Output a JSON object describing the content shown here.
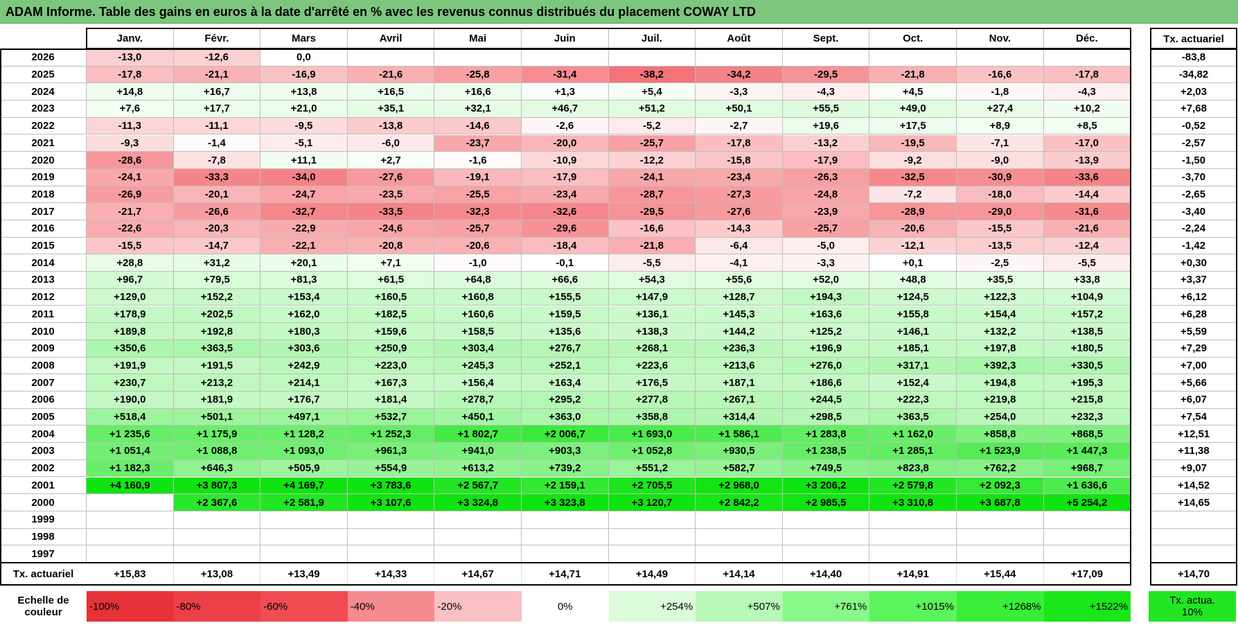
{
  "title": "ADAM Informe. Table des gains en euros à la date d'arrêté en % avec les revenus connus distribués du placement COWAY LTD",
  "table": {
    "columns": [
      "Janv.",
      "Févr.",
      "Mars",
      "Avril",
      "Mai",
      "Juin",
      "Juil.",
      "Août",
      "Sept.",
      "Oct.",
      "Nov.",
      "Déc."
    ],
    "total_header": "Tx. actuariel",
    "rows": [
      {
        "year": "2026",
        "cells": [
          "-13,0",
          "-12,6",
          "0,0",
          null,
          null,
          null,
          null,
          null,
          null,
          null,
          null,
          null
        ],
        "total": "-83,8"
      },
      {
        "year": "2025",
        "cells": [
          "-17,8",
          "-21,1",
          "-16,9",
          "-21,6",
          "-25,8",
          "-31,4",
          "-38,2",
          "-34,2",
          "-29,5",
          "-21,8",
          "-16,6",
          "-17,8"
        ],
        "total": "-34,82"
      },
      {
        "year": "2024",
        "cells": [
          "+14,8",
          "+16,7",
          "+13,8",
          "+16,5",
          "+16,6",
          "+1,3",
          "+5,4",
          "-3,3",
          "-4,3",
          "+4,5",
          "-1,8",
          "-4,3"
        ],
        "total": "+2,03"
      },
      {
        "year": "2023",
        "cells": [
          "+7,6",
          "+17,7",
          "+21,0",
          "+35,1",
          "+32,1",
          "+46,7",
          "+51,2",
          "+50,1",
          "+55,5",
          "+49,0",
          "+27,4",
          "+10,2"
        ],
        "total": "+7,68"
      },
      {
        "year": "2022",
        "cells": [
          "-11,3",
          "-11,1",
          "-9,5",
          "-13,8",
          "-14,6",
          "-2,6",
          "-5,2",
          "-2,7",
          "+19,6",
          "+17,5",
          "+8,9",
          "+8,5"
        ],
        "total": "-0,52"
      },
      {
        "year": "2021",
        "cells": [
          "-9,3",
          "-1,4",
          "-5,1",
          "-6,0",
          "-23,7",
          "-20,0",
          "-25,7",
          "-17,8",
          "-13,2",
          "-19,5",
          "-7,1",
          "-17,0"
        ],
        "total": "-2,57"
      },
      {
        "year": "2020",
        "cells": [
          "-28,6",
          "-7,8",
          "+11,1",
          "+2,7",
          "-1,6",
          "-10,9",
          "-12,2",
          "-15,8",
          "-17,9",
          "-9,2",
          "-9,0",
          "-13,9"
        ],
        "total": "-1,50"
      },
      {
        "year": "2019",
        "cells": [
          "-24,1",
          "-33,3",
          "-34,0",
          "-27,6",
          "-19,1",
          "-17,9",
          "-24,1",
          "-23,4",
          "-26,3",
          "-32,5",
          "-30,9",
          "-33,6"
        ],
        "total": "-3,70"
      },
      {
        "year": "2018",
        "cells": [
          "-26,9",
          "-20,1",
          "-24,7",
          "-23,5",
          "-25,5",
          "-23,4",
          "-28,7",
          "-27,3",
          "-24,8",
          "-7,2",
          "-18,0",
          "-14,4"
        ],
        "total": "-2,65"
      },
      {
        "year": "2017",
        "cells": [
          "-21,7",
          "-26,6",
          "-32,7",
          "-33,5",
          "-32,3",
          "-32,6",
          "-29,5",
          "-27,6",
          "-23,9",
          "-28,9",
          "-29,0",
          "-31,6"
        ],
        "total": "-3,40"
      },
      {
        "year": "2016",
        "cells": [
          "-22,6",
          "-20,3",
          "-22,9",
          "-24,6",
          "-25,7",
          "-29,6",
          "-16,6",
          "-14,3",
          "-25,7",
          "-20,6",
          "-15,5",
          "-21,6"
        ],
        "total": "-2,24"
      },
      {
        "year": "2015",
        "cells": [
          "-15,5",
          "-14,7",
          "-22,1",
          "-20,8",
          "-20,6",
          "-18,4",
          "-21,8",
          "-6,4",
          "-5,0",
          "-12,1",
          "-13,5",
          "-12,4"
        ],
        "total": "-1,42"
      },
      {
        "year": "2014",
        "cells": [
          "+28,8",
          "+31,2",
          "+20,1",
          "+7,1",
          "-1,0",
          "-0,1",
          "-5,5",
          "-4,1",
          "-3,3",
          "+0,1",
          "-2,5",
          "-5,5"
        ],
        "total": "+0,30"
      },
      {
        "year": "2013",
        "cells": [
          "+96,7",
          "+79,5",
          "+81,3",
          "+61,5",
          "+64,8",
          "+66,6",
          "+54,3",
          "+55,6",
          "+52,0",
          "+48,8",
          "+35,5",
          "+33,8"
        ],
        "total": "+3,37"
      },
      {
        "year": "2012",
        "cells": [
          "+129,0",
          "+152,2",
          "+153,4",
          "+160,5",
          "+160,8",
          "+155,5",
          "+147,9",
          "+128,7",
          "+194,3",
          "+124,5",
          "+122,3",
          "+104,9"
        ],
        "total": "+6,12"
      },
      {
        "year": "2011",
        "cells": [
          "+178,9",
          "+202,5",
          "+162,0",
          "+182,5",
          "+160,6",
          "+159,5",
          "+136,1",
          "+145,3",
          "+163,6",
          "+155,8",
          "+154,4",
          "+157,2"
        ],
        "total": "+6,28"
      },
      {
        "year": "2010",
        "cells": [
          "+189,8",
          "+192,8",
          "+180,3",
          "+159,6",
          "+158,5",
          "+135,6",
          "+138,3",
          "+144,2",
          "+125,2",
          "+146,1",
          "+132,2",
          "+138,5"
        ],
        "total": "+5,59"
      },
      {
        "year": "2009",
        "cells": [
          "+350,6",
          "+363,5",
          "+303,6",
          "+250,9",
          "+303,4",
          "+276,7",
          "+268,1",
          "+236,3",
          "+196,9",
          "+185,1",
          "+197,8",
          "+180,5"
        ],
        "total": "+7,29"
      },
      {
        "year": "2008",
        "cells": [
          "+191,9",
          "+191,5",
          "+242,9",
          "+223,0",
          "+245,3",
          "+252,1",
          "+223,6",
          "+213,6",
          "+276,0",
          "+317,1",
          "+392,3",
          "+330,5"
        ],
        "total": "+7,00"
      },
      {
        "year": "2007",
        "cells": [
          "+230,7",
          "+213,2",
          "+214,1",
          "+167,3",
          "+156,4",
          "+163,4",
          "+176,5",
          "+187,1",
          "+186,6",
          "+152,4",
          "+194,8",
          "+195,3"
        ],
        "total": "+5,66"
      },
      {
        "year": "2006",
        "cells": [
          "+190,0",
          "+181,9",
          "+176,7",
          "+181,4",
          "+278,7",
          "+295,2",
          "+277,8",
          "+267,1",
          "+244,5",
          "+222,3",
          "+219,8",
          "+215,8"
        ],
        "total": "+6,07"
      },
      {
        "year": "2005",
        "cells": [
          "+518,4",
          "+501,1",
          "+497,1",
          "+532,7",
          "+450,1",
          "+363,0",
          "+358,8",
          "+314,4",
          "+298,5",
          "+363,5",
          "+254,0",
          "+232,3"
        ],
        "total": "+7,54"
      },
      {
        "year": "2004",
        "cells": [
          "+1 235,6",
          "+1 175,9",
          "+1 128,2",
          "+1 252,3",
          "+1 802,7",
          "+2 006,7",
          "+1 693,0",
          "+1 586,1",
          "+1 283,8",
          "+1 162,0",
          "+858,8",
          "+868,5"
        ],
        "total": "+12,51"
      },
      {
        "year": "2003",
        "cells": [
          "+1 051,4",
          "+1 088,8",
          "+1 093,0",
          "+961,3",
          "+941,0",
          "+903,3",
          "+1 052,8",
          "+930,5",
          "+1 238,5",
          "+1 285,1",
          "+1 523,9",
          "+1 447,3"
        ],
        "total": "+11,38"
      },
      {
        "year": "2002",
        "cells": [
          "+1 182,3",
          "+646,3",
          "+505,9",
          "+554,9",
          "+613,2",
          "+739,2",
          "+551,2",
          "+582,7",
          "+749,5",
          "+823,8",
          "+762,2",
          "+968,7"
        ],
        "total": "+9,07"
      },
      {
        "year": "2001",
        "cells": [
          "+4 160,9",
          "+3 807,3",
          "+4 169,7",
          "+3 783,6",
          "+2 567,7",
          "+2 159,1",
          "+2 705,5",
          "+2 968,0",
          "+3 206,2",
          "+2 579,8",
          "+2 092,3",
          "+1 636,6"
        ],
        "total": "+14,52"
      },
      {
        "year": "2000",
        "cells": [
          null,
          "+2 367,6",
          "+2 581,9",
          "+3 107,6",
          "+3 324,8",
          "+3 323,8",
          "+3 120,7",
          "+2 842,2",
          "+2 985,5",
          "+3 310,8",
          "+3 687,8",
          "+5 254,2"
        ],
        "total": "+14,65"
      },
      {
        "year": "1999",
        "cells": [
          null,
          null,
          null,
          null,
          null,
          null,
          null,
          null,
          null,
          null,
          null,
          null
        ],
        "total": null
      },
      {
        "year": "1998",
        "cells": [
          null,
          null,
          null,
          null,
          null,
          null,
          null,
          null,
          null,
          null,
          null,
          null
        ],
        "total": null
      },
      {
        "year": "1997",
        "cells": [
          null,
          null,
          null,
          null,
          null,
          null,
          null,
          null,
          null,
          null,
          null,
          null
        ],
        "total": null
      }
    ],
    "footer": {
      "label": "Tx. actuariel",
      "cells": [
        "+15,83",
        "+13,08",
        "+13,49",
        "+14,33",
        "+14,67",
        "+14,71",
        "+14,49",
        "+14,14",
        "+14,40",
        "+14,91",
        "+15,44",
        "+17,09"
      ],
      "total": "+14,70"
    }
  },
  "legend": {
    "label": "Echelle de couleur",
    "steps": [
      "-100%",
      "-80%",
      "-60%",
      "-40%",
      "-20%",
      "0%",
      "+254%",
      "+507%",
      "+761%",
      "+1015%",
      "+1268%",
      "+1522%"
    ],
    "colors": [
      "#e8323a",
      "#ec4048",
      "#f04c52",
      "#f58a8f",
      "#fbc0c3",
      "#ffffff",
      "#dcfcdc",
      "#b8f8b8",
      "#88f888",
      "#5cf45c",
      "#38ee38",
      "#1ae61a"
    ],
    "total": "Tx. actua. 10%",
    "total_color": "#22e622"
  }
}
